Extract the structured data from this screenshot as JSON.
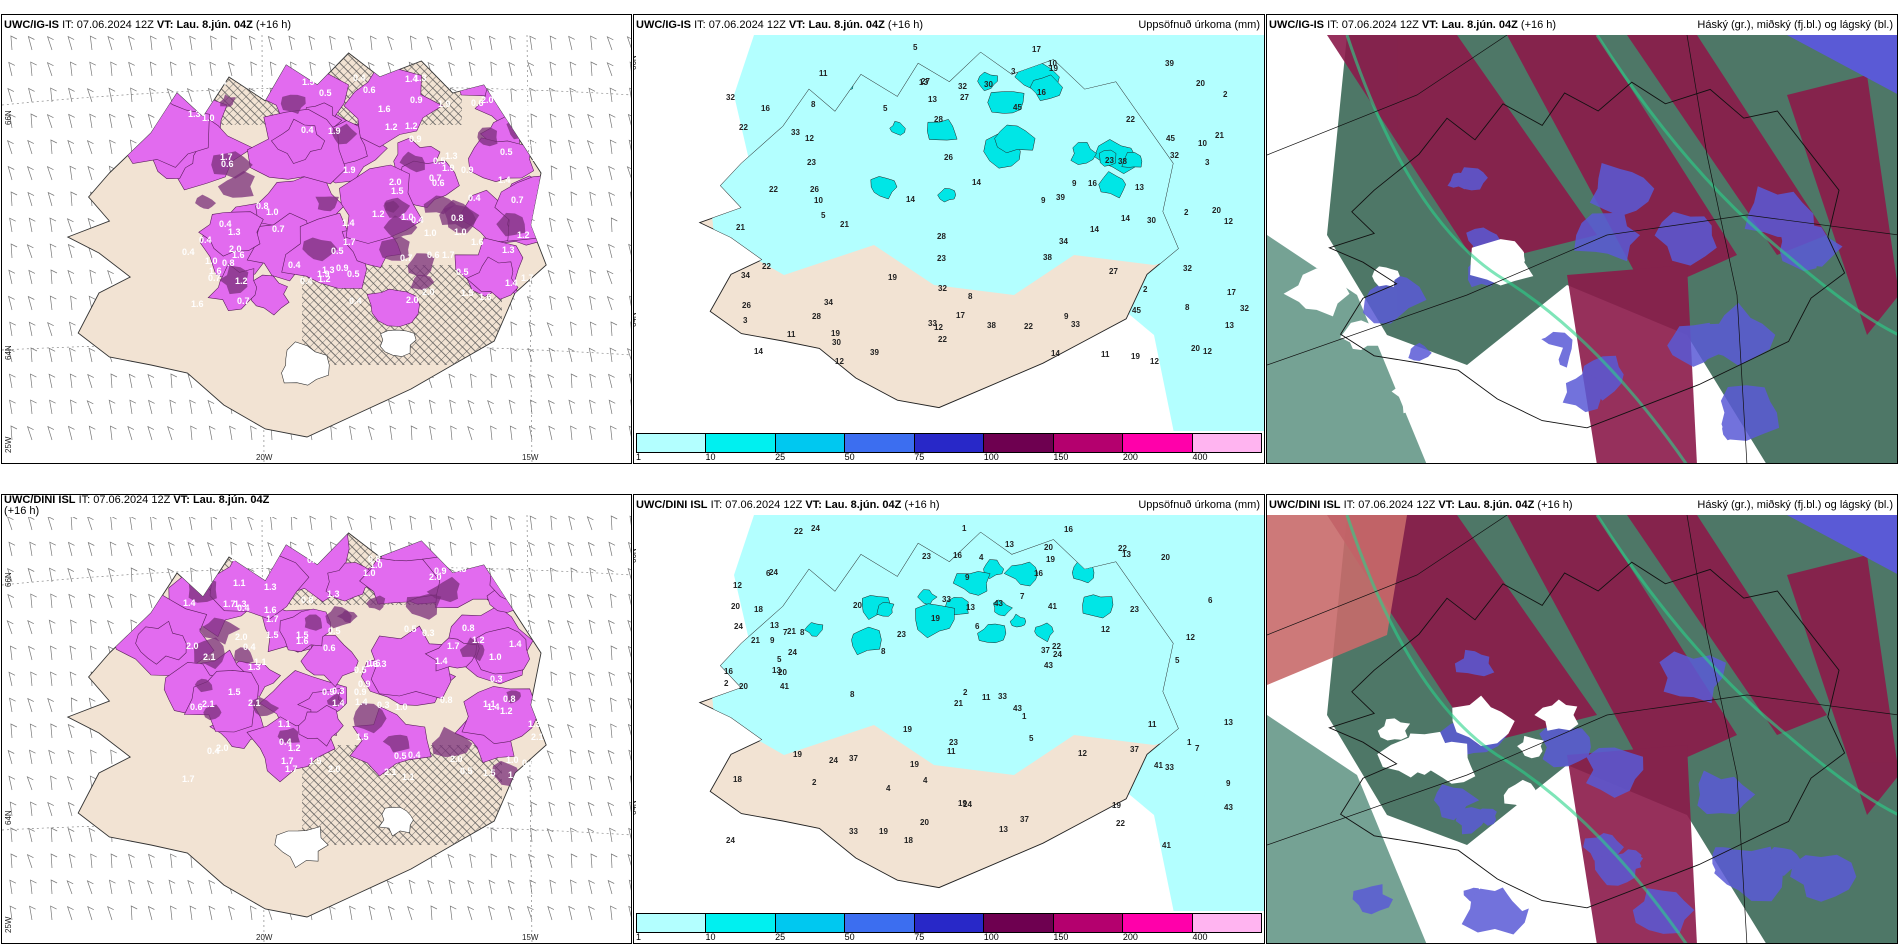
{
  "row1": {
    "p1": {
      "model": "UWC/IG-IS",
      "it_label": "IT:",
      "it": "07.06.2024 12Z",
      "vt_label": "VT:",
      "vt": "Lau. 8.jún. 04Z",
      "lead": "(+16 h)",
      "right": ""
    },
    "p2": {
      "model": "UWC/IG-IS",
      "it_label": "IT:",
      "it": "07.06.2024 12Z",
      "vt_label": "VT:",
      "vt": "Lau. 8.jún. 04Z",
      "lead": "(+16 h)",
      "right": "Uppsöfnuð úrkoma (mm)"
    },
    "p3": {
      "model": "UWC/IG-IS",
      "it_label": "IT:",
      "it": "07.06.2024 12Z",
      "vt_label": "VT:",
      "vt": "Lau. 8.jún. 04Z",
      "lead": "(+16 h)",
      "right": "Háský (gr.), miðský (fj.bl.) og lágský (bl.)"
    }
  },
  "row2": {
    "p1": {
      "model": "UWC/DINI ISL",
      "it_label": "IT:",
      "it": "07.06.2024 12Z",
      "vt_label": "VT:",
      "vt": "Lau. 8.jún. 04Z",
      "lead": "(+16 h)",
      "right": ""
    },
    "p2": {
      "model": "UWC/DINI ISL",
      "it_label": "IT:",
      "it": "07.06.2024 12Z",
      "vt_label": "VT:",
      "vt": "Lau. 8.jún. 04Z",
      "lead": "(+16 h)",
      "right": "Uppsöfnuð úrkoma (mm)"
    },
    "p3": {
      "model": "UWC/DINI ISL",
      "it_label": "IT:",
      "it": "07.06.2024 12Z",
      "vt_label": "VT:",
      "vt": "Lau. 8.jún. 04Z",
      "lead": "(+16 h)",
      "right": "Háský (gr.), miðský (fj.bl.) og lágský (bl.)"
    }
  },
  "axes": {
    "lat66": "66N",
    "lat64": "64N",
    "lon25": "25W",
    "lon20": "20W",
    "lon15": "15W"
  },
  "legend": {
    "ticks": [
      "1",
      "10",
      "25",
      "50",
      "75",
      "100",
      "150",
      "200",
      "400"
    ],
    "colors": [
      "#b3ffff",
      "#00f0f0",
      "#00c8f0",
      "#3c6ef0",
      "#2828c8",
      "#6e0050",
      "#b4006e",
      "#ff00aa",
      "#ffb4f0"
    ]
  },
  "colors": {
    "land": "#f2e3d3",
    "snow_pink": "#e26bef",
    "snow_dark": "#7a2f7a",
    "precip": "#b3ffff",
    "high_cloud": "#2f5f4c",
    "mid_cloud": "#8b1a4a",
    "low_cloud": "#5a5ad6"
  },
  "precip_labels_top": [
    "19",
    "13",
    "23",
    "30",
    "22",
    "39",
    "34",
    "32",
    "38",
    "45",
    "27",
    "26",
    "12",
    "33",
    "17",
    "20",
    "14",
    "11",
    "28",
    "32",
    "22",
    "21",
    "14",
    "12",
    "16",
    "10",
    "9",
    "8",
    "5",
    "3",
    "2"
  ],
  "precip_labels_bottom": [
    "19",
    "13",
    "23",
    "43",
    "24",
    "41",
    "33",
    "37",
    "24",
    "20",
    "22",
    "19",
    "16",
    "12",
    "20",
    "21",
    "18",
    "11",
    "13",
    "9",
    "6",
    "8",
    "7",
    "5",
    "4",
    "2",
    "1"
  ],
  "depth_labels_top": [
    "0.4",
    "1.2",
    "0.8",
    "1.3",
    "0.7",
    "1.6",
    "1.0",
    "0.9",
    "1.9",
    "0.5",
    "0.4",
    "1.7",
    "1.4",
    "0.6",
    "2.0",
    "1.5"
  ],
  "depth_labels_bottom": [
    "0.5",
    "2.1",
    "1.3",
    "1.7",
    "0.9",
    "1.1",
    "1.4",
    "0.8",
    "2.0",
    "1.5",
    "0.4",
    "1.0",
    "1.6",
    "0.6",
    "1.2",
    "0.3"
  ]
}
